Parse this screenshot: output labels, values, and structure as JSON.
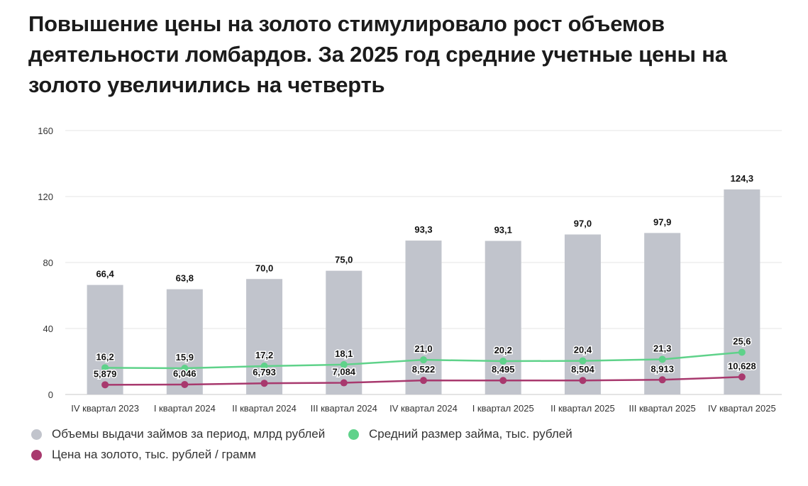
{
  "title": "Повышение цены на золото стимулировало рост объемов деятельности ломбардов. За 2025 год средние учетные цены на золото увеличились на четверть",
  "chart_data": {
    "type": "bar",
    "categories": [
      "IV квартал 2023",
      "I квартал 2024",
      "II квартал 2024",
      "III квартал 2024",
      "IV квартал 2024",
      "I квартал 2025",
      "II квартал 2025",
      "III квартал 2025",
      "IV квартал 2025"
    ],
    "ylim": [
      0,
      160
    ],
    "yticks": [
      0,
      40,
      80,
      120,
      160
    ],
    "grid": true,
    "legend_position": "bottom-left",
    "series": [
      {
        "name": "Объемы выдачи займов за период, млрд рублей",
        "type": "bar",
        "color": "#c1c4cc",
        "values": [
          66.4,
          63.8,
          70.0,
          75.0,
          93.3,
          93.1,
          97.0,
          97.9,
          124.3
        ],
        "labels": [
          "66,4",
          "63,8",
          "70,0",
          "75,0",
          "93,3",
          "93,1",
          "97,0",
          "97,9",
          "124,3"
        ]
      },
      {
        "name": "Средний размер займа, тыс. рублей",
        "type": "line",
        "color": "#5fd28a",
        "values": [
          16.2,
          15.9,
          17.2,
          18.1,
          21.0,
          20.2,
          20.4,
          21.3,
          25.6
        ],
        "labels": [
          "16,2",
          "15,9",
          "17,2",
          "18,1",
          "21,0",
          "20,2",
          "20,4",
          "21,3",
          "25,6"
        ]
      },
      {
        "name": "Цена на золото, тыс. рублей / грамм",
        "type": "line",
        "color": "#a8396e",
        "values": [
          5.879,
          6.046,
          6.793,
          7.084,
          8.522,
          8.495,
          8.504,
          8.913,
          10.628
        ],
        "labels": [
          "5,879",
          "6,046",
          "6,793",
          "7,084",
          "8,522",
          "8,495",
          "8,504",
          "8,913",
          "10,628"
        ]
      }
    ]
  }
}
